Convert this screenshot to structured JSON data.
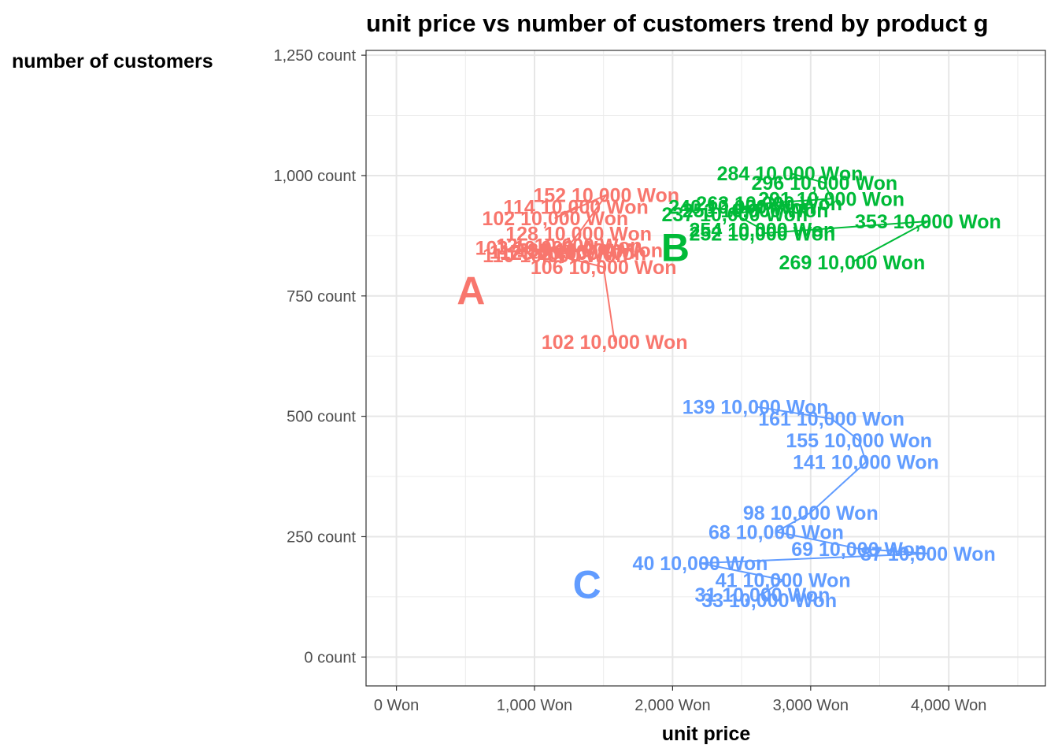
{
  "chart_data": {
    "type": "line",
    "title": "unit price vs number of customers trend by product g",
    "xlabel": "unit price",
    "ylabel": "number of customers",
    "xlim": [
      -220,
      4700
    ],
    "ylim": [
      -60,
      1260
    ],
    "x_ticks": [
      {
        "value": 0,
        "label": "0 Won"
      },
      {
        "value": 1000,
        "label": "1,000 Won"
      },
      {
        "value": 2000,
        "label": "2,000 Won"
      },
      {
        "value": 3000,
        "label": "3,000 Won"
      },
      {
        "value": 4000,
        "label": "4,000 Won"
      }
    ],
    "y_ticks": [
      {
        "value": 0,
        "label": "0 count"
      },
      {
        "value": 250,
        "label": "250 count"
      },
      {
        "value": 500,
        "label": "500 count"
      },
      {
        "value": 750,
        "label": "750 count"
      },
      {
        "value": 1000,
        "label": "1,000 count"
      },
      {
        "value": 1250,
        "label": "1,250 count"
      }
    ],
    "grid": true,
    "legend": "none",
    "series": [
      {
        "name": "A",
        "color": "#F8766D",
        "group_label_pos": [
          540,
          760
        ],
        "points": [
          {
            "x": 1300,
            "y": 935,
            "label": "114 10,000 Won"
          },
          {
            "x": 1150,
            "y": 912,
            "label": "102 10,000 Won"
          },
          {
            "x": 1520,
            "y": 960,
            "label": "152 10,000 Won"
          },
          {
            "x": 1320,
            "y": 880,
            "label": "128 10,000 Won"
          },
          {
            "x": 1250,
            "y": 855,
            "label": "125 10,000 Won"
          },
          {
            "x": 1100,
            "y": 850,
            "label": "103 10,000 Won"
          },
          {
            "x": 1400,
            "y": 845,
            "label": "136 10,000 Won"
          },
          {
            "x": 1200,
            "y": 842,
            "label": "117 10,000 Won"
          },
          {
            "x": 1280,
            "y": 840,
            "label": "123 10,000 Won"
          },
          {
            "x": 1150,
            "y": 835,
            "label": "110 10,000 Won"
          },
          {
            "x": 1500,
            "y": 810,
            "label": "106 10,000 Won"
          },
          {
            "x": 1580,
            "y": 655,
            "label": "102 10,000 Won"
          }
        ]
      },
      {
        "name": "B",
        "color": "#00BA38",
        "group_label_pos": [
          2020,
          850
        ],
        "points": [
          {
            "x": 2850,
            "y": 1005,
            "label": "284 10,000 Won"
          },
          {
            "x": 3100,
            "y": 985,
            "label": "296 10,000 Won"
          },
          {
            "x": 3150,
            "y": 952,
            "label": "291 10,000 Won"
          },
          {
            "x": 2700,
            "y": 943,
            "label": "263 10,000 Won"
          },
          {
            "x": 2500,
            "y": 935,
            "label": "240 10,000 Won"
          },
          {
            "x": 2600,
            "y": 928,
            "label": "253 10,000 Won"
          },
          {
            "x": 2450,
            "y": 920,
            "label": "237 10,000 Won"
          },
          {
            "x": 2650,
            "y": 888,
            "label": "254 10,000 Won"
          },
          {
            "x": 2650,
            "y": 880,
            "label": "252 10,000 Won"
          },
          {
            "x": 3850,
            "y": 905,
            "label": "353 10,000 Won"
          },
          {
            "x": 3300,
            "y": 820,
            "label": "269 10,000 Won"
          }
        ]
      },
      {
        "name": "C",
        "color": "#619CFF",
        "group_label_pos": [
          1380,
          150
        ],
        "points": [
          {
            "x": 2600,
            "y": 520,
            "label": "139 10,000 Won"
          },
          {
            "x": 3150,
            "y": 495,
            "label": "161 10,000 Won"
          },
          {
            "x": 3350,
            "y": 450,
            "label": "155 10,000 Won"
          },
          {
            "x": 3400,
            "y": 405,
            "label": "141 10,000 Won"
          },
          {
            "x": 3000,
            "y": 300,
            "label": "98 10,000 Won"
          },
          {
            "x": 2750,
            "y": 260,
            "label": "68 10,000 Won"
          },
          {
            "x": 3350,
            "y": 225,
            "label": "69 10,000 Won"
          },
          {
            "x": 3850,
            "y": 215,
            "label": "87 10,000 Won"
          },
          {
            "x": 2200,
            "y": 195,
            "label": "40 10,000 Won"
          },
          {
            "x": 2800,
            "y": 160,
            "label": "41 10,000 Won"
          },
          {
            "x": 2650,
            "y": 130,
            "label": "31 10,000 Won"
          },
          {
            "x": 2700,
            "y": 118,
            "label": "33 10,000 Won"
          }
        ]
      }
    ]
  }
}
